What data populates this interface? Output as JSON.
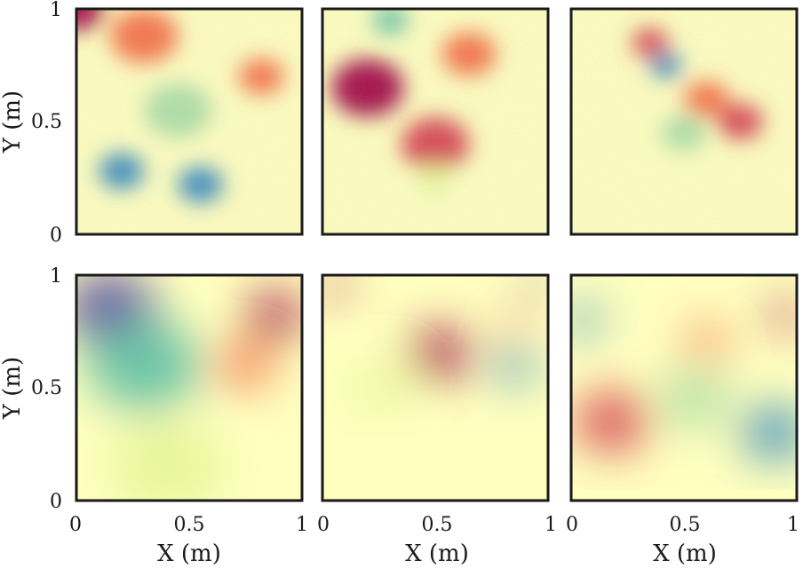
{
  "chart_data": {
    "type": "heatmap",
    "rows": 2,
    "cols": 3,
    "xlim": [
      0,
      1
    ],
    "ylim": [
      0,
      1
    ],
    "xlabel": "X (m)",
    "ylabel": "Y (m)",
    "xticks": [
      "0",
      "0.5",
      "1"
    ],
    "yticks": [
      "0",
      "0.5",
      "1"
    ],
    "colormap": [
      "#5e4fa2",
      "#3288bd",
      "#66c2a5",
      "#abdda4",
      "#e6f598",
      "#ffffbf",
      "#fee08b",
      "#fdae61",
      "#f46d43",
      "#d53e4f",
      "#9e0142"
    ],
    "panels": [
      {
        "row": 0,
        "col": 0,
        "texture": "striated",
        "features": [
          {
            "x": 0.0,
            "y": 1.0,
            "v": 0.95,
            "r": 0.12
          },
          {
            "x": 0.3,
            "y": 0.88,
            "v": 0.75,
            "r": 0.15
          },
          {
            "x": 0.82,
            "y": 0.7,
            "v": 0.78,
            "r": 0.1
          },
          {
            "x": 0.45,
            "y": 0.55,
            "v": 0.3,
            "r": 0.15
          },
          {
            "x": 0.2,
            "y": 0.28,
            "v": 0.05,
            "r": 0.1
          },
          {
            "x": 0.55,
            "y": 0.22,
            "v": 0.1,
            "r": 0.1
          }
        ]
      },
      {
        "row": 0,
        "col": 1,
        "texture": "striated",
        "features": [
          {
            "x": 0.2,
            "y": 0.65,
            "v": 1.0,
            "r": 0.16
          },
          {
            "x": 0.5,
            "y": 0.4,
            "v": 0.85,
            "r": 0.15
          },
          {
            "x": 0.65,
            "y": 0.8,
            "v": 0.82,
            "r": 0.12
          },
          {
            "x": 0.3,
            "y": 0.95,
            "v": 0.15,
            "r": 0.08
          },
          {
            "x": 0.5,
            "y": 0.25,
            "v": 0.35,
            "r": 0.08
          }
        ]
      },
      {
        "row": 0,
        "col": 2,
        "texture": "striated",
        "features": [
          {
            "x": 0.35,
            "y": 0.85,
            "v": 0.9,
            "r": 0.08
          },
          {
            "x": 0.42,
            "y": 0.75,
            "v": 0.05,
            "r": 0.07
          },
          {
            "x": 0.6,
            "y": 0.6,
            "v": 0.8,
            "r": 0.1
          },
          {
            "x": 0.5,
            "y": 0.45,
            "v": 0.3,
            "r": 0.1
          },
          {
            "x": 0.75,
            "y": 0.5,
            "v": 0.85,
            "r": 0.1
          }
        ]
      },
      {
        "row": 1,
        "col": 0,
        "texture": "smooth",
        "features": [
          {
            "x": 0.15,
            "y": 0.85,
            "v": 0.0,
            "r": 0.2
          },
          {
            "x": 0.3,
            "y": 0.6,
            "v": 0.15,
            "r": 0.25
          },
          {
            "x": 0.88,
            "y": 0.82,
            "v": 1.0,
            "r": 0.12
          },
          {
            "x": 0.75,
            "y": 0.6,
            "v": 0.75,
            "r": 0.12
          },
          {
            "x": 0.4,
            "y": 0.15,
            "v": 0.35,
            "r": 0.25
          }
        ]
      },
      {
        "row": 1,
        "col": 1,
        "texture": "smooth",
        "features": [
          {
            "x": 0.05,
            "y": 0.95,
            "v": 1.0,
            "r": 0.06
          },
          {
            "x": 0.52,
            "y": 0.65,
            "v": 0.95,
            "r": 0.13
          },
          {
            "x": 0.85,
            "y": 0.6,
            "v": 0.1,
            "r": 0.09
          },
          {
            "x": 0.95,
            "y": 0.95,
            "v": 0.0,
            "r": 0.05
          },
          {
            "x": 0.85,
            "y": 0.8,
            "v": 0.8,
            "r": 0.05
          },
          {
            "x": 0.25,
            "y": 0.5,
            "v": 0.35,
            "r": 0.12
          }
        ]
      },
      {
        "row": 1,
        "col": 2,
        "texture": "smooth",
        "features": [
          {
            "x": 0.18,
            "y": 0.35,
            "v": 0.9,
            "r": 0.16
          },
          {
            "x": 0.05,
            "y": 0.8,
            "v": 0.1,
            "r": 0.08
          },
          {
            "x": 0.95,
            "y": 0.82,
            "v": 1.0,
            "r": 0.07
          },
          {
            "x": 0.6,
            "y": 0.7,
            "v": 0.75,
            "r": 0.09
          },
          {
            "x": 0.9,
            "y": 0.3,
            "v": 0.1,
            "r": 0.14
          },
          {
            "x": 0.55,
            "y": 0.45,
            "v": 0.3,
            "r": 0.15
          }
        ]
      }
    ]
  }
}
